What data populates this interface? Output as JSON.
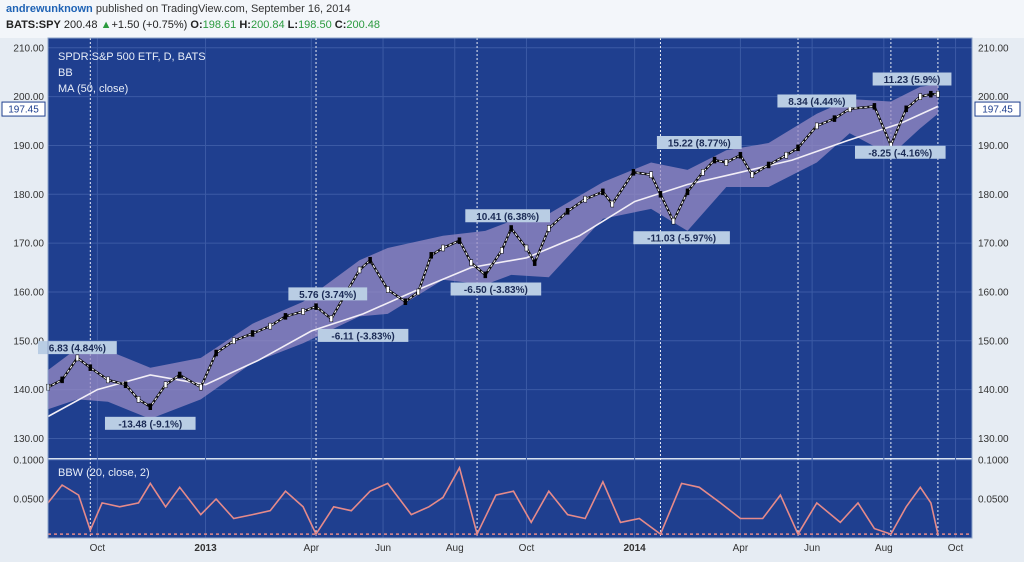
{
  "header": {
    "author": "andrewunknown",
    "published_text": "published on TradingView.com, September 16, 2014",
    "symbol": "BATS:SPY",
    "last": "200.48",
    "change_arrow": "▲",
    "change": "+1.50 (+0.75%)",
    "o_label": "O:",
    "o_value": "198.61",
    "h_label": "H:",
    "h_value": "200.84",
    "l_label": "L:",
    "l_value": "198.50",
    "c_label": "C:",
    "c_value": "200.48"
  },
  "legend": {
    "title": "SPDR S&P 500 ETF, D, BATS",
    "bb": "BB",
    "ma": "MA (50, close)",
    "bbw": "BBW (20, close, 2)"
  },
  "price_flag": "197.45",
  "colors": {
    "background": "#1f3f8f",
    "band": "#9a8cc4",
    "ma": "#f2eef7",
    "bbw": "#e58a8a",
    "label_bg": "#b9cde4",
    "label_text": "#1a2a55"
  },
  "chart_data": [
    {
      "type": "line",
      "title": "SPDR S&P 500 ETF, D, BATS",
      "ylim": [
        126,
        212
      ],
      "yticks": [
        "130.00",
        "140.00",
        "150.00",
        "160.00",
        "170.00",
        "180.00",
        "190.00",
        "200.00",
        "210.00"
      ],
      "ytick_values": [
        130,
        140,
        150,
        160,
        170,
        180,
        190,
        200,
        210
      ],
      "xticks": [
        "Oct",
        "2013",
        "Apr",
        "Jun",
        "Aug",
        "Oct",
        "2014",
        "Apr",
        "Jun",
        "Aug",
        "Oct"
      ],
      "x_range": [
        "2012-08-20",
        "2014-10-15"
      ],
      "xtick_dates": [
        "2012-10-01",
        "2013-01-01",
        "2013-04-01",
        "2013-06-01",
        "2013-08-01",
        "2013-10-01",
        "2014-01-01",
        "2014-04-01",
        "2014-06-01",
        "2014-08-01",
        "2014-10-01"
      ],
      "grid": true,
      "series": [
        {
          "name": "Price (close, approx.)",
          "x": [
            "2012-08-20",
            "2012-09-01",
            "2012-09-14",
            "2012-09-25",
            "2012-10-10",
            "2012-10-25",
            "2012-11-05",
            "2012-11-15",
            "2012-11-28",
            "2012-12-10",
            "2012-12-28",
            "2013-01-10",
            "2013-01-25",
            "2013-02-10",
            "2013-02-25",
            "2013-03-10",
            "2013-03-25",
            "2013-04-05",
            "2013-04-18",
            "2013-05-01",
            "2013-05-12",
            "2013-05-21",
            "2013-06-05",
            "2013-06-20",
            "2013-07-01",
            "2013-07-12",
            "2013-07-22",
            "2013-08-05",
            "2013-08-15",
            "2013-08-27",
            "2013-09-10",
            "2013-09-18",
            "2013-10-01",
            "2013-10-08",
            "2013-10-20",
            "2013-11-05",
            "2013-11-20",
            "2013-12-05",
            "2013-12-13",
            "2013-12-31",
            "2014-01-15",
            "2014-01-23",
            "2014-02-03",
            "2014-02-15",
            "2014-02-28",
            "2014-03-10",
            "2014-03-20",
            "2014-04-01",
            "2014-04-11",
            "2014-04-25",
            "2014-05-10",
            "2014-05-20",
            "2014-06-05",
            "2014-06-20",
            "2014-07-03",
            "2014-07-24",
            "2014-08-07",
            "2014-08-20",
            "2014-09-01",
            "2014-09-10",
            "2014-09-16"
          ],
          "values": [
            140.5,
            142.0,
            146.5,
            144.5,
            142.0,
            141.0,
            138.0,
            136.5,
            141.0,
            143.0,
            140.5,
            147.5,
            150.0,
            151.5,
            153.0,
            155.0,
            156.0,
            157.0,
            154.5,
            160.0,
            164.5,
            166.5,
            160.5,
            158.0,
            160.0,
            167.5,
            169.0,
            170.5,
            166.0,
            163.5,
            168.5,
            173.0,
            169.0,
            166.0,
            173.0,
            176.5,
            179.0,
            180.5,
            178.0,
            184.5,
            184.0,
            180.0,
            174.5,
            180.5,
            184.5,
            187.0,
            186.5,
            188.0,
            184.0,
            186.0,
            188.0,
            189.5,
            194.0,
            195.5,
            197.5,
            198.0,
            190.0,
            197.5,
            200.0,
            200.5,
            200.5
          ]
        },
        {
          "name": "MA (50, close)",
          "x": [
            "2012-08-20",
            "2012-10-01",
            "2012-11-15",
            "2013-01-01",
            "2013-02-15",
            "2013-04-01",
            "2013-05-15",
            "2013-07-01",
            "2013-08-15",
            "2013-10-01",
            "2013-11-15",
            "2014-01-01",
            "2014-02-15",
            "2014-04-01",
            "2014-05-15",
            "2014-07-01",
            "2014-08-15",
            "2014-09-16"
          ],
          "values": [
            134.5,
            140.0,
            143.0,
            141.0,
            146.0,
            152.0,
            155.5,
            160.5,
            165.0,
            167.0,
            171.5,
            178.5,
            182.0,
            184.5,
            187.0,
            191.0,
            194.5,
            198.0
          ]
        },
        {
          "name": "BB upper (approx.)",
          "x": [
            "2012-08-20",
            "2012-09-14",
            "2012-10-10",
            "2012-11-15",
            "2012-12-28",
            "2013-02-10",
            "2013-03-25",
            "2013-05-12",
            "2013-06-05",
            "2013-07-22",
            "2013-08-27",
            "2013-09-18",
            "2013-10-20",
            "2013-12-05",
            "2014-01-15",
            "2014-02-15",
            "2014-03-20",
            "2014-04-25",
            "2014-06-05",
            "2014-07-03",
            "2014-08-07",
            "2014-09-01",
            "2014-09-16"
          ],
          "values": [
            144.0,
            148.5,
            148.0,
            144.5,
            146.5,
            153.5,
            158.0,
            166.5,
            169.0,
            171.5,
            172.5,
            174.5,
            176.0,
            182.5,
            186.5,
            185.0,
            189.0,
            190.5,
            196.5,
            199.5,
            199.0,
            202.0,
            202.5
          ]
        },
        {
          "name": "BB lower (approx.)",
          "x": [
            "2012-08-20",
            "2012-09-14",
            "2012-10-10",
            "2012-11-15",
            "2012-12-28",
            "2013-02-10",
            "2013-03-25",
            "2013-05-12",
            "2013-06-05",
            "2013-07-22",
            "2013-08-27",
            "2013-09-18",
            "2013-10-20",
            "2013-12-05",
            "2014-01-15",
            "2014-02-15",
            "2014-03-20",
            "2014-04-25",
            "2014-06-05",
            "2014-07-03",
            "2014-08-07",
            "2014-09-01",
            "2014-09-16"
          ],
          "values": [
            136.0,
            138.0,
            137.5,
            134.0,
            138.0,
            145.5,
            149.5,
            155.0,
            155.5,
            162.5,
            161.5,
            163.5,
            163.0,
            175.0,
            177.0,
            172.5,
            181.5,
            181.5,
            186.5,
            192.5,
            188.0,
            193.5,
            196.5
          ]
        }
      ],
      "annotations": [
        {
          "text": "6.83 (4.84%)",
          "x": "2012-09-14",
          "y": 148.5
        },
        {
          "text": "-13.48 (-9.1%)",
          "x": "2012-11-15",
          "y": 133.0
        },
        {
          "text": "5.76 (3.74%)",
          "x": "2013-04-15",
          "y": 159.5
        },
        {
          "text": "-6.11 (-3.83%)",
          "x": "2013-05-15",
          "y": 151.0
        },
        {
          "text": "10.41 (6.38%)",
          "x": "2013-09-15",
          "y": 175.5
        },
        {
          "text": "-6.50 (-3.83%)",
          "x": "2013-09-05",
          "y": 160.5
        },
        {
          "text": "15.22 (8.77%)",
          "x": "2014-02-25",
          "y": 190.5
        },
        {
          "text": "-11.03 (-5.97%)",
          "x": "2014-02-10",
          "y": 171.0
        },
        {
          "text": "8.34 (4.44%)",
          "x": "2014-06-05",
          "y": 199.0
        },
        {
          "text": "-8.25 (-4.16%)",
          "x": "2014-08-15",
          "y": 188.5
        },
        {
          "text": "11.23 (5.9%)",
          "x": "2014-08-25",
          "y": 203.5
        }
      ],
      "vlines": [
        "2012-09-25",
        "2013-04-05",
        "2013-08-20",
        "2014-01-23",
        "2014-05-20",
        "2014-08-07",
        "2014-09-16"
      ]
    },
    {
      "type": "line",
      "title": "BBW (20, close, 2)",
      "ylim": [
        0.0,
        0.1
      ],
      "yticks": [
        "0.0500",
        "0.1000"
      ],
      "ytick_values": [
        0.05,
        0.1
      ],
      "series": [
        {
          "name": "BBW (20, close, 2)",
          "x": [
            "2012-08-20",
            "2012-09-01",
            "2012-09-15",
            "2012-09-25",
            "2012-10-05",
            "2012-10-20",
            "2012-11-05",
            "2012-11-15",
            "2012-11-28",
            "2012-12-10",
            "2012-12-28",
            "2013-01-10",
            "2013-01-25",
            "2013-02-10",
            "2013-02-25",
            "2013-03-10",
            "2013-03-25",
            "2013-04-05",
            "2013-04-20",
            "2013-05-05",
            "2013-05-21",
            "2013-06-05",
            "2013-06-25",
            "2013-07-10",
            "2013-07-22",
            "2013-08-05",
            "2013-08-20",
            "2013-09-05",
            "2013-09-20",
            "2013-10-05",
            "2013-10-20",
            "2013-11-05",
            "2013-11-20",
            "2013-12-05",
            "2013-12-20",
            "2014-01-05",
            "2014-01-23",
            "2014-02-10",
            "2014-02-25",
            "2014-03-15",
            "2014-04-01",
            "2014-04-20",
            "2014-05-05",
            "2014-05-20",
            "2014-06-05",
            "2014-06-25",
            "2014-07-10",
            "2014-07-24",
            "2014-08-07",
            "2014-08-20",
            "2014-09-01",
            "2014-09-10",
            "2014-09-16"
          ],
          "values": [
            0.045,
            0.068,
            0.055,
            0.01,
            0.045,
            0.04,
            0.045,
            0.07,
            0.04,
            0.065,
            0.03,
            0.05,
            0.025,
            0.03,
            0.035,
            0.06,
            0.04,
            0.005,
            0.04,
            0.035,
            0.06,
            0.07,
            0.03,
            0.04,
            0.052,
            0.09,
            0.005,
            0.055,
            0.06,
            0.02,
            0.06,
            0.03,
            0.025,
            0.072,
            0.02,
            0.025,
            0.005,
            0.07,
            0.065,
            0.045,
            0.025,
            0.025,
            0.055,
            0.005,
            0.045,
            0.02,
            0.045,
            0.012,
            0.005,
            0.04,
            0.065,
            0.045,
            0.005
          ]
        }
      ],
      "hline": 0.005
    }
  ]
}
